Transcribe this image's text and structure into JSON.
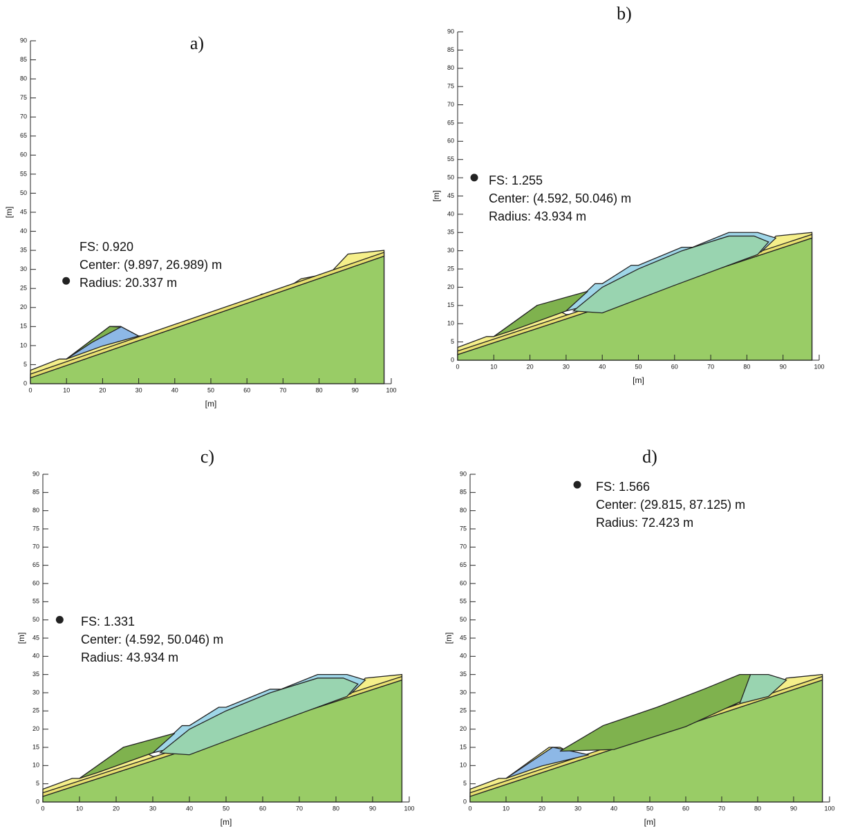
{
  "chart_data": [
    {
      "type": "scatter",
      "title": "a)",
      "xlabel": "[m]",
      "ylabel": "[m]",
      "xlim": [
        0,
        100
      ],
      "ylim": [
        0,
        90
      ],
      "xticks": [
        0,
        10,
        20,
        30,
        40,
        50,
        60,
        70,
        80,
        90,
        100
      ],
      "yticks": [
        0,
        5,
        10,
        15,
        20,
        25,
        30,
        35,
        40,
        45,
        50,
        55,
        60,
        65,
        70,
        75,
        80,
        85,
        90
      ],
      "series": [
        {
          "color": "#222222",
          "x": [
            9.897
          ],
          "values": [
            26.989
          ]
        }
      ],
      "annotation": [
        "FS: 0.920",
        "Center: (9.897, 26.989) m",
        "Radius: 20.337 m"
      ]
    },
    {
      "type": "scatter",
      "title": "b)",
      "xlabel": "[m]",
      "ylabel": "[m]",
      "xlim": [
        0,
        100
      ],
      "ylim": [
        0,
        90
      ],
      "xticks": [
        0,
        10,
        20,
        30,
        40,
        50,
        60,
        70,
        80,
        90,
        100
      ],
      "yticks": [
        0,
        5,
        10,
        15,
        20,
        25,
        30,
        35,
        40,
        45,
        50,
        55,
        60,
        65,
        70,
        75,
        80,
        85,
        90
      ],
      "series": [
        {
          "color": "#222222",
          "x": [
            4.592
          ],
          "values": [
            50.046
          ]
        }
      ],
      "annotation": [
        "FS: 1.255",
        "Center: (4.592, 50.046) m",
        "Radius: 43.934 m"
      ]
    },
    {
      "type": "scatter",
      "title": "c)",
      "xlabel": "[m]",
      "ylabel": "[m]",
      "xlim": [
        0,
        100
      ],
      "ylim": [
        0,
        90
      ],
      "xticks": [
        0,
        10,
        20,
        30,
        40,
        50,
        60,
        70,
        80,
        90,
        100
      ],
      "yticks": [
        0,
        5,
        10,
        15,
        20,
        25,
        30,
        35,
        40,
        45,
        50,
        55,
        60,
        65,
        70,
        75,
        80,
        85,
        90
      ],
      "series": [
        {
          "color": "#222222",
          "x": [
            4.592
          ],
          "values": [
            50.046
          ]
        }
      ],
      "annotation": [
        "FS: 1.331",
        "Center: (4.592, 50.046) m",
        "Radius: 43.934 m"
      ]
    },
    {
      "type": "scatter",
      "title": "d)",
      "xlabel": "[m]",
      "ylabel": "[m]",
      "xlim": [
        0,
        100
      ],
      "ylim": [
        0,
        90
      ],
      "xticks": [
        0,
        10,
        20,
        30,
        40,
        50,
        60,
        70,
        80,
        90,
        100
      ],
      "yticks": [
        0,
        5,
        10,
        15,
        20,
        25,
        30,
        35,
        40,
        45,
        50,
        55,
        60,
        65,
        70,
        75,
        80,
        85,
        90
      ],
      "series": [
        {
          "color": "#222222",
          "x": [
            29.815
          ],
          "values": [
            87.125
          ]
        }
      ],
      "annotation": [
        "FS: 1.566",
        "Center: (29.815, 87.125) m",
        "Radius: 72.423 m"
      ]
    }
  ]
}
